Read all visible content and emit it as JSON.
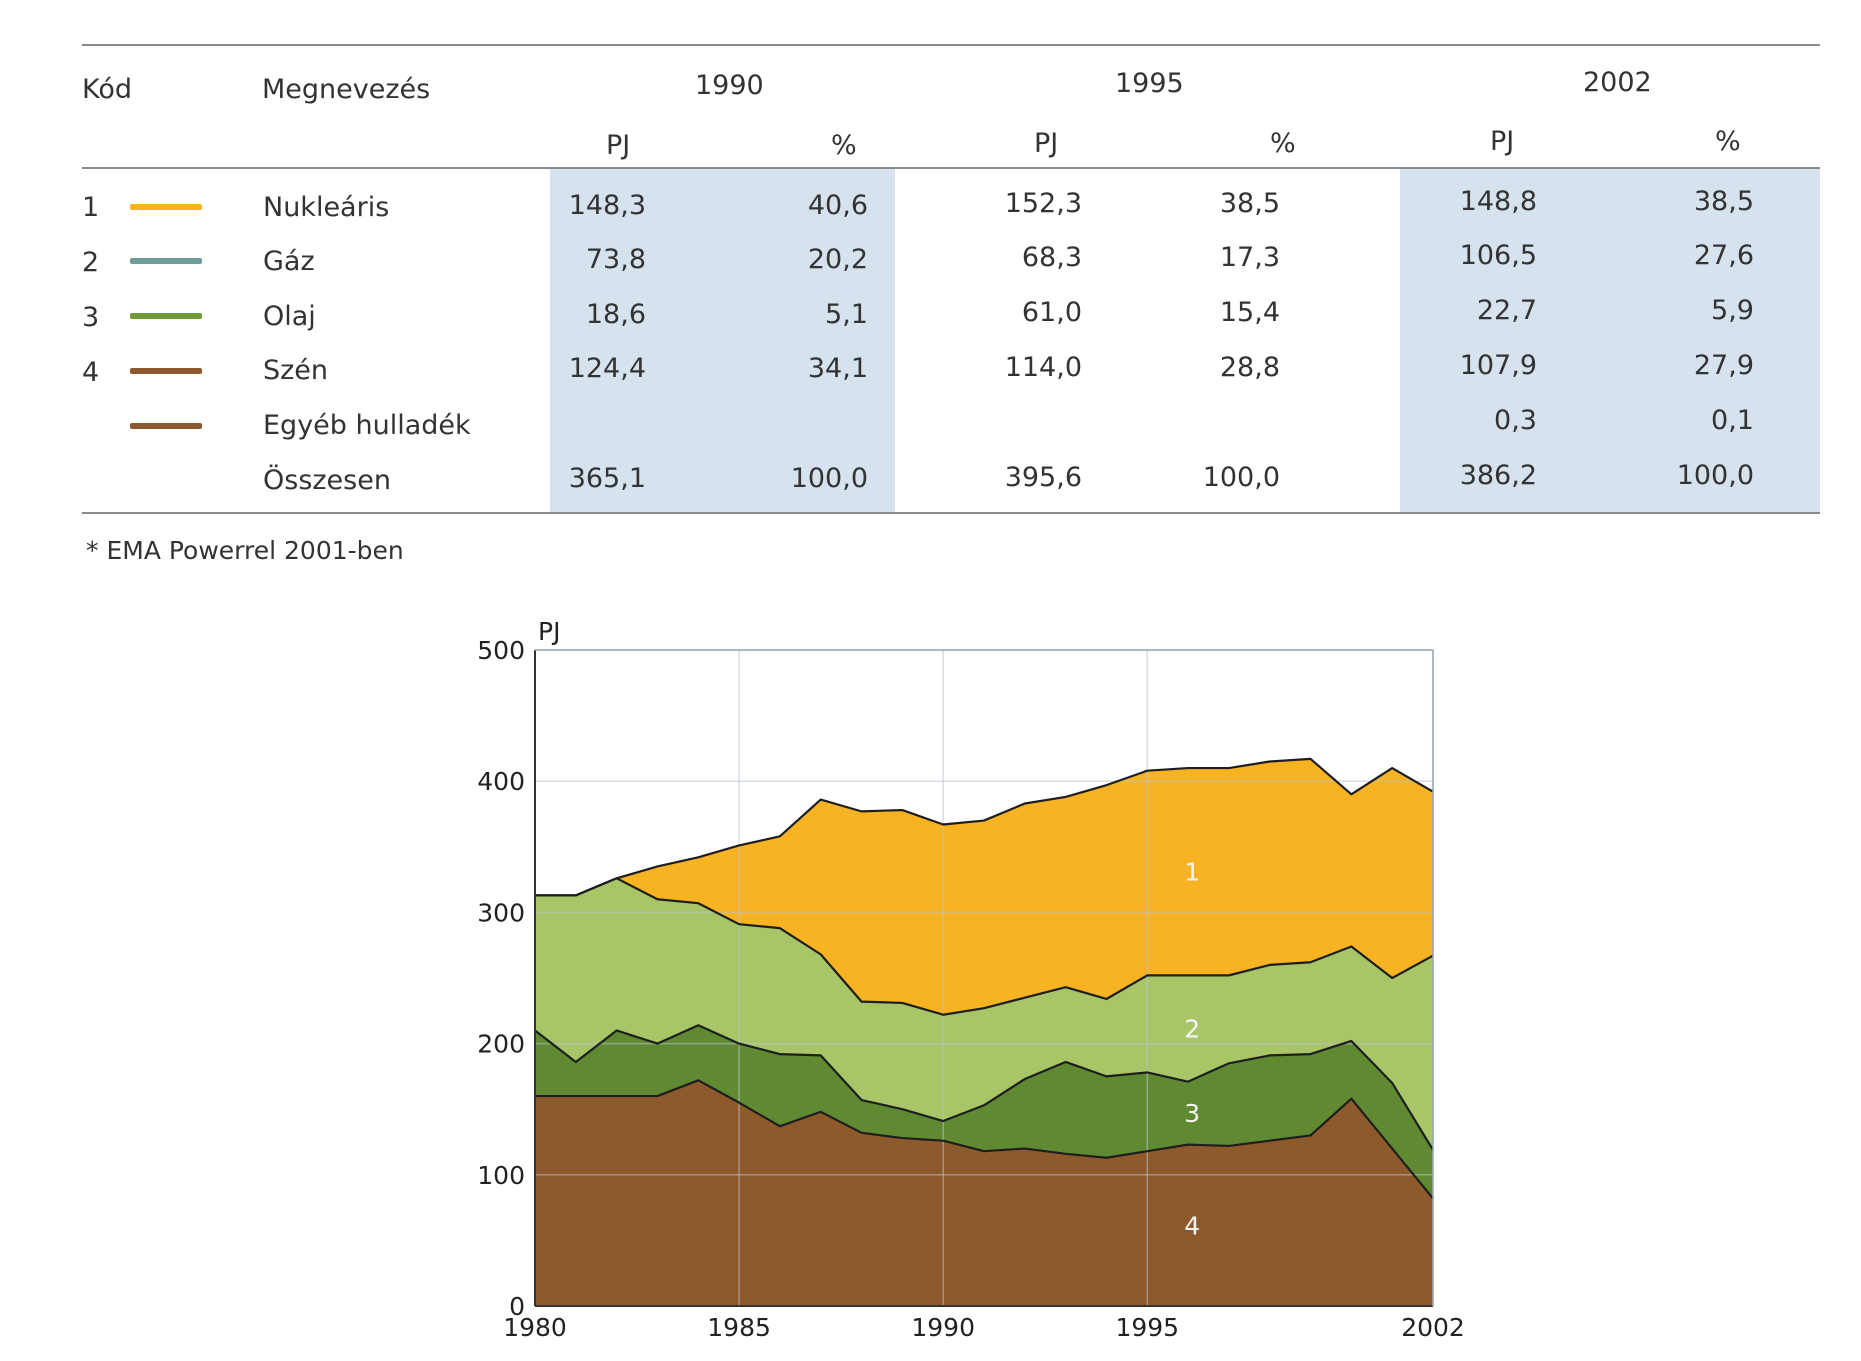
{
  "table": {
    "headers": {
      "code": "Kód",
      "name": "Megnevezés",
      "years": [
        "1990",
        "1995",
        "2002"
      ],
      "unit_pj": "PJ",
      "unit_pct": "%"
    },
    "rows": [
      {
        "code": "1",
        "name": "Nukleáris",
        "color": "#f7b322",
        "values": [
          "148,3",
          "40,6",
          "152,3",
          "38,5",
          "148,8",
          "38,5"
        ]
      },
      {
        "code": "2",
        "name": "Gáz",
        "color": "#6e9e9a",
        "values": [
          "73,8",
          "20,2",
          "68,3",
          "17,3",
          "106,5",
          "27,6"
        ]
      },
      {
        "code": "3",
        "name": "Olaj",
        "color": "#6f9a3a",
        "values": [
          "18,6",
          "5,1",
          "61,0",
          "15,4",
          "22,7",
          "5,9"
        ]
      },
      {
        "code": "4",
        "name": "Szén",
        "color": "#8c5a2e",
        "values": [
          "124,4",
          "34,1",
          "114,0",
          "28,8",
          "107,9",
          "27,9"
        ]
      },
      {
        "code": "",
        "name": "Egyéb hulladék",
        "color": "#8c5a2e",
        "values": [
          "",
          "",
          "",
          "",
          "0,3",
          "0,1"
        ]
      },
      {
        "code": "",
        "name": "Összesen",
        "color": "",
        "values": [
          "365,1",
          "100,0",
          "395,6",
          "100,0",
          "386,2",
          "100,0"
        ]
      }
    ]
  },
  "footnote": "* EMA Powerrel 2001-ben",
  "chart_data": {
    "type": "area",
    "ylabel": "PJ",
    "xlim": [
      1980,
      2002
    ],
    "ylim": [
      0,
      500
    ],
    "xticks": [
      "1980",
      "1985",
      "1990",
      "1995",
      "2002"
    ],
    "yticks": [
      "0",
      "100",
      "200",
      "300",
      "400",
      "500"
    ],
    "grid": true,
    "x": [
      1980,
      1981,
      1982,
      1983,
      1984,
      1985,
      1986,
      1987,
      1988,
      1989,
      1990,
      1991,
      1992,
      1993,
      1994,
      1995,
      1996,
      1997,
      1998,
      1999,
      2000,
      2001,
      2002
    ],
    "series": [
      {
        "name": "4",
        "color": "#8e5a2c",
        "values": [
          160,
          160,
          160,
          160,
          172,
          155,
          137,
          148,
          132,
          128,
          126,
          118,
          120,
          116,
          113,
          118,
          123,
          122,
          126,
          130,
          158,
          120,
          82
        ]
      },
      {
        "name": "3",
        "color": "#5f8a32",
        "values": [
          50,
          26,
          50,
          40,
          42,
          45,
          55,
          43,
          25,
          22,
          15,
          35,
          53,
          70,
          62,
          60,
          48,
          63,
          65,
          62,
          44,
          50,
          37
        ]
      },
      {
        "name": "2",
        "color": "#a8c668",
        "values": [
          103,
          127,
          116,
          110,
          93,
          91,
          96,
          77,
          75,
          81,
          81,
          74,
          62,
          57,
          59,
          74,
          81,
          67,
          69,
          70,
          72,
          80,
          148
        ]
      },
      {
        "name": "1",
        "color": "#f7b322",
        "values": [
          0,
          0,
          0,
          25,
          35,
          60,
          70,
          118,
          145,
          147,
          145,
          143,
          148,
          145,
          163,
          156,
          158,
          158,
          155,
          155,
          116,
          160,
          125
        ]
      }
    ],
    "labels": [
      "1",
      "2",
      "3",
      "4"
    ]
  }
}
